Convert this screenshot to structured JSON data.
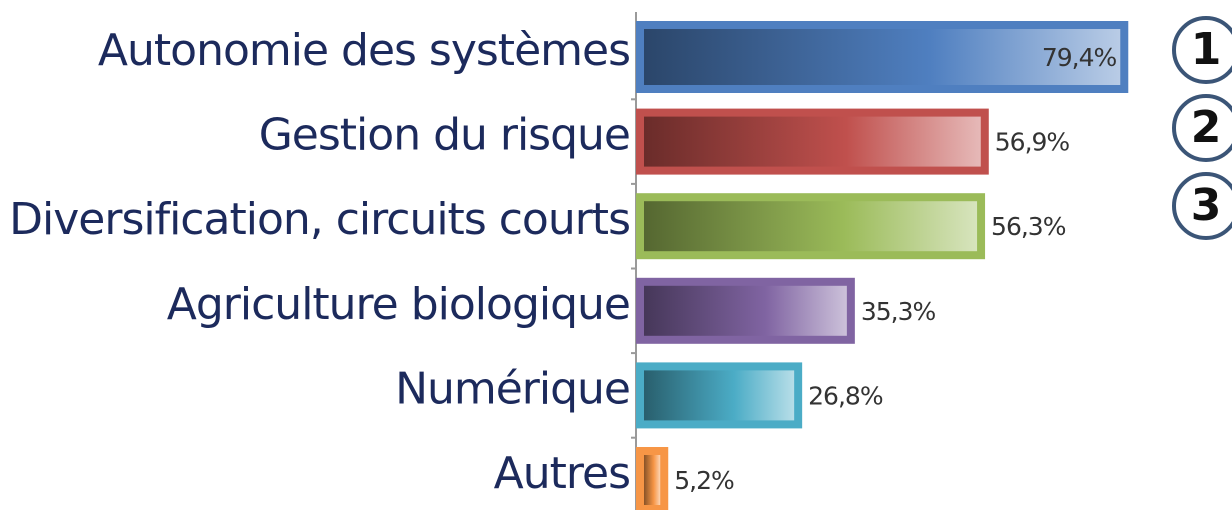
{
  "chart_data": {
    "type": "bar",
    "orientation": "horizontal",
    "categories": [
      "Autonomie des systèmes",
      "Gestion du risque",
      "Diversification, circuits courts",
      "Agriculture biologique",
      "Numérique",
      "Autres"
    ],
    "values": [
      79.4,
      56.9,
      56.3,
      35.3,
      26.8,
      5.2
    ],
    "value_labels": [
      "79,4%",
      "56,9%",
      "56,3%",
      "35,3%",
      "26,8%",
      "5,2%"
    ],
    "colors": [
      "#4f7fc0",
      "#c0504d",
      "#9bbb59",
      "#8064a2",
      "#4bacc6",
      "#f79646"
    ],
    "xlim": [
      0,
      80
    ],
    "annotations": [
      "1",
      "2",
      "3"
    ]
  }
}
